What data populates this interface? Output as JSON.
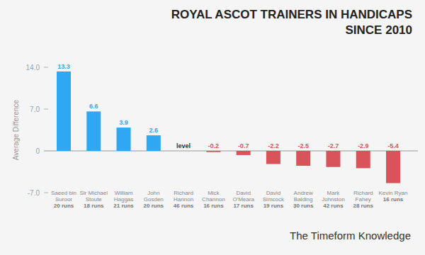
{
  "chart_data": {
    "type": "bar",
    "title": "ROYAL ASCOT TRAINERS IN HANDICAPS SINCE 2010",
    "y_label": "Average Difference",
    "footer": "The Timeform Knowledge",
    "categories": [
      "Saeed bin Suroor",
      "Sir Michael Stoute",
      "William Haggas",
      "John Gosden",
      "Richard Hannon",
      "Mick Channon",
      "David O'Meara",
      "David Simcock",
      "Andrew Balding",
      "Mark Johnston",
      "Richard Fahey",
      "Kevin Ryan"
    ],
    "runs": [
      "20 runs",
      "18 runs",
      "21 runs",
      "20 runs",
      "46 runs",
      "16 runs",
      "17 runs",
      "19 runs",
      "30 runs",
      "42 runs",
      "28 runs",
      "16 runs"
    ],
    "values": [
      13.3,
      6.6,
      3.9,
      2.6,
      0,
      -0.2,
      -0.7,
      -2.2,
      -2.5,
      -2.7,
      -2.9,
      -5.4
    ],
    "value_labels": [
      "13.3",
      "6.6",
      "3.9",
      "2.6",
      "level",
      "-0.2",
      "-0.7",
      "-2.2",
      "-2.5",
      "-2.7",
      "-2.9",
      "-5.4"
    ],
    "colors": [
      "#2ea8f2",
      "#2ea8f2",
      "#2ea8f2",
      "#2ea8f2",
      "#555555",
      "#d9535a",
      "#d9535a",
      "#d9535a",
      "#d9535a",
      "#d9535a",
      "#d9535a",
      "#d9535a"
    ],
    "ylim": [
      -7,
      14
    ],
    "yticks": [
      {
        "value": -7,
        "label": "-7.0"
      },
      0,
      {
        "value": 7,
        "label": "7.0"
      },
      {
        "value": 14,
        "label": "14.0"
      }
    ],
    "grid": false,
    "data_labels": true
  }
}
